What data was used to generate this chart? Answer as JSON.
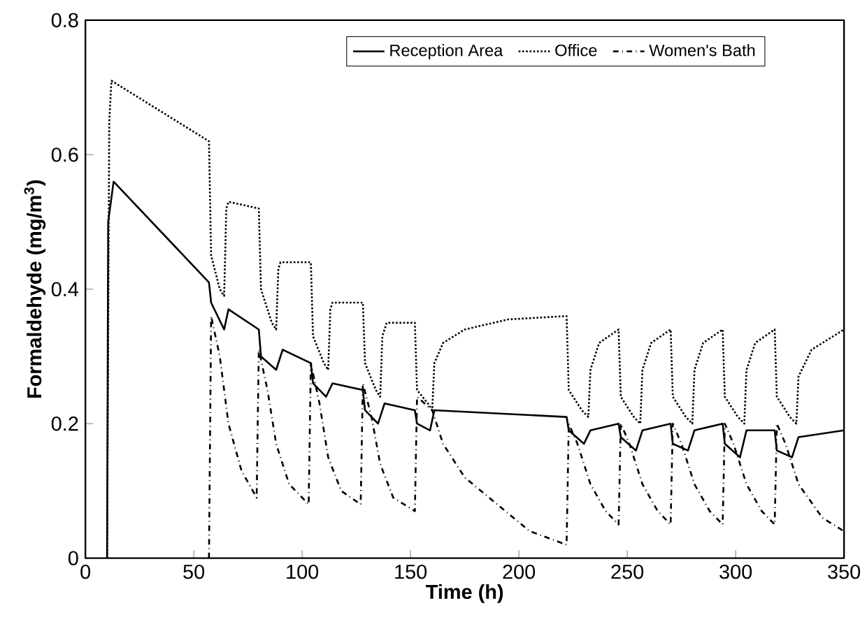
{
  "chart_data": {
    "type": "line",
    "xlabel": "Time (h)",
    "ylabel": "Formaldehyde (mg/m$^{3}$)",
    "xlim": [
      0,
      350
    ],
    "xticks": [
      0,
      50,
      100,
      150,
      200,
      250,
      300,
      350
    ],
    "ylim": [
      0,
      0.8
    ],
    "yticks": [
      0,
      0.2,
      0.4,
      0.6,
      0.8
    ],
    "legend": "top",
    "grid": false,
    "marker": "none",
    "series": [
      {
        "name": "Reception Area",
        "color": "#000000",
        "line_style": "solid",
        "x": [
          10,
          10.5,
          13,
          57,
          58,
          64,
          66,
          80,
          81,
          88,
          91,
          104,
          105,
          111,
          114,
          128,
          129,
          135,
          138,
          152,
          153,
          159,
          161,
          222,
          223,
          230,
          233,
          246,
          247,
          254,
          257,
          270,
          271,
          278,
          281,
          294,
          295,
          302,
          305,
          318,
          319,
          326,
          329,
          350
        ],
        "values": [
          0,
          0.5,
          0.56,
          0.41,
          0.38,
          0.34,
          0.37,
          0.34,
          0.3,
          0.28,
          0.31,
          0.29,
          0.26,
          0.24,
          0.26,
          0.25,
          0.22,
          0.2,
          0.23,
          0.22,
          0.2,
          0.19,
          0.22,
          0.21,
          0.19,
          0.17,
          0.19,
          0.2,
          0.18,
          0.16,
          0.19,
          0.2,
          0.17,
          0.16,
          0.19,
          0.2,
          0.17,
          0.15,
          0.19,
          0.19,
          0.16,
          0.15,
          0.18,
          0.19
        ]
      },
      {
        "name": "Office",
        "color": "#000000",
        "line_style": "dotted",
        "x": [
          10,
          11,
          12,
          57,
          58,
          62,
          64,
          65,
          66,
          80,
          81,
          86,
          88,
          89,
          90,
          104,
          105,
          110,
          112,
          113,
          114,
          128,
          129,
          134,
          136,
          137,
          139,
          152,
          153,
          158,
          160,
          161,
          165,
          175,
          195,
          222,
          223,
          229,
          232,
          233,
          237,
          246,
          247,
          253,
          256,
          257,
          261,
          270,
          271,
          277,
          280,
          281,
          285,
          294,
          295,
          301,
          304,
          305,
          309,
          318,
          319,
          325,
          328,
          329,
          335,
          350
        ],
        "values": [
          0,
          0.65,
          0.71,
          0.62,
          0.45,
          0.4,
          0.39,
          0.52,
          0.53,
          0.52,
          0.4,
          0.35,
          0.34,
          0.43,
          0.44,
          0.44,
          0.33,
          0.29,
          0.28,
          0.37,
          0.38,
          0.38,
          0.29,
          0.25,
          0.24,
          0.33,
          0.35,
          0.35,
          0.25,
          0.23,
          0.22,
          0.29,
          0.32,
          0.34,
          0.355,
          0.36,
          0.25,
          0.22,
          0.21,
          0.28,
          0.32,
          0.34,
          0.24,
          0.21,
          0.2,
          0.28,
          0.32,
          0.34,
          0.24,
          0.21,
          0.2,
          0.28,
          0.32,
          0.34,
          0.24,
          0.21,
          0.2,
          0.28,
          0.32,
          0.34,
          0.24,
          0.21,
          0.2,
          0.27,
          0.31,
          0.34
        ]
      },
      {
        "name": "Women's Bath",
        "color": "#000000",
        "line_style": "dashdot",
        "x": [
          57,
          58,
          62,
          66,
          72,
          79,
          80,
          84,
          88,
          94,
          103,
          104,
          108,
          112,
          118,
          127,
          128,
          132,
          136,
          142,
          152,
          153,
          160,
          165,
          175,
          190,
          205,
          222,
          223,
          227,
          233,
          240,
          246,
          247,
          251,
          257,
          264,
          270,
          271,
          275,
          281,
          288,
          294,
          295,
          299,
          305,
          312,
          318,
          319,
          323,
          329,
          340,
          350
        ],
        "values": [
          0,
          0.36,
          0.3,
          0.2,
          0.13,
          0.09,
          0.31,
          0.25,
          0.17,
          0.11,
          0.08,
          0.29,
          0.23,
          0.15,
          0.1,
          0.08,
          0.26,
          0.21,
          0.14,
          0.09,
          0.07,
          0.24,
          0.22,
          0.17,
          0.12,
          0.08,
          0.04,
          0.02,
          0.2,
          0.17,
          0.11,
          0.07,
          0.05,
          0.2,
          0.17,
          0.11,
          0.07,
          0.05,
          0.2,
          0.17,
          0.11,
          0.07,
          0.05,
          0.2,
          0.17,
          0.11,
          0.07,
          0.05,
          0.2,
          0.17,
          0.11,
          0.06,
          0.04
        ]
      }
    ]
  }
}
